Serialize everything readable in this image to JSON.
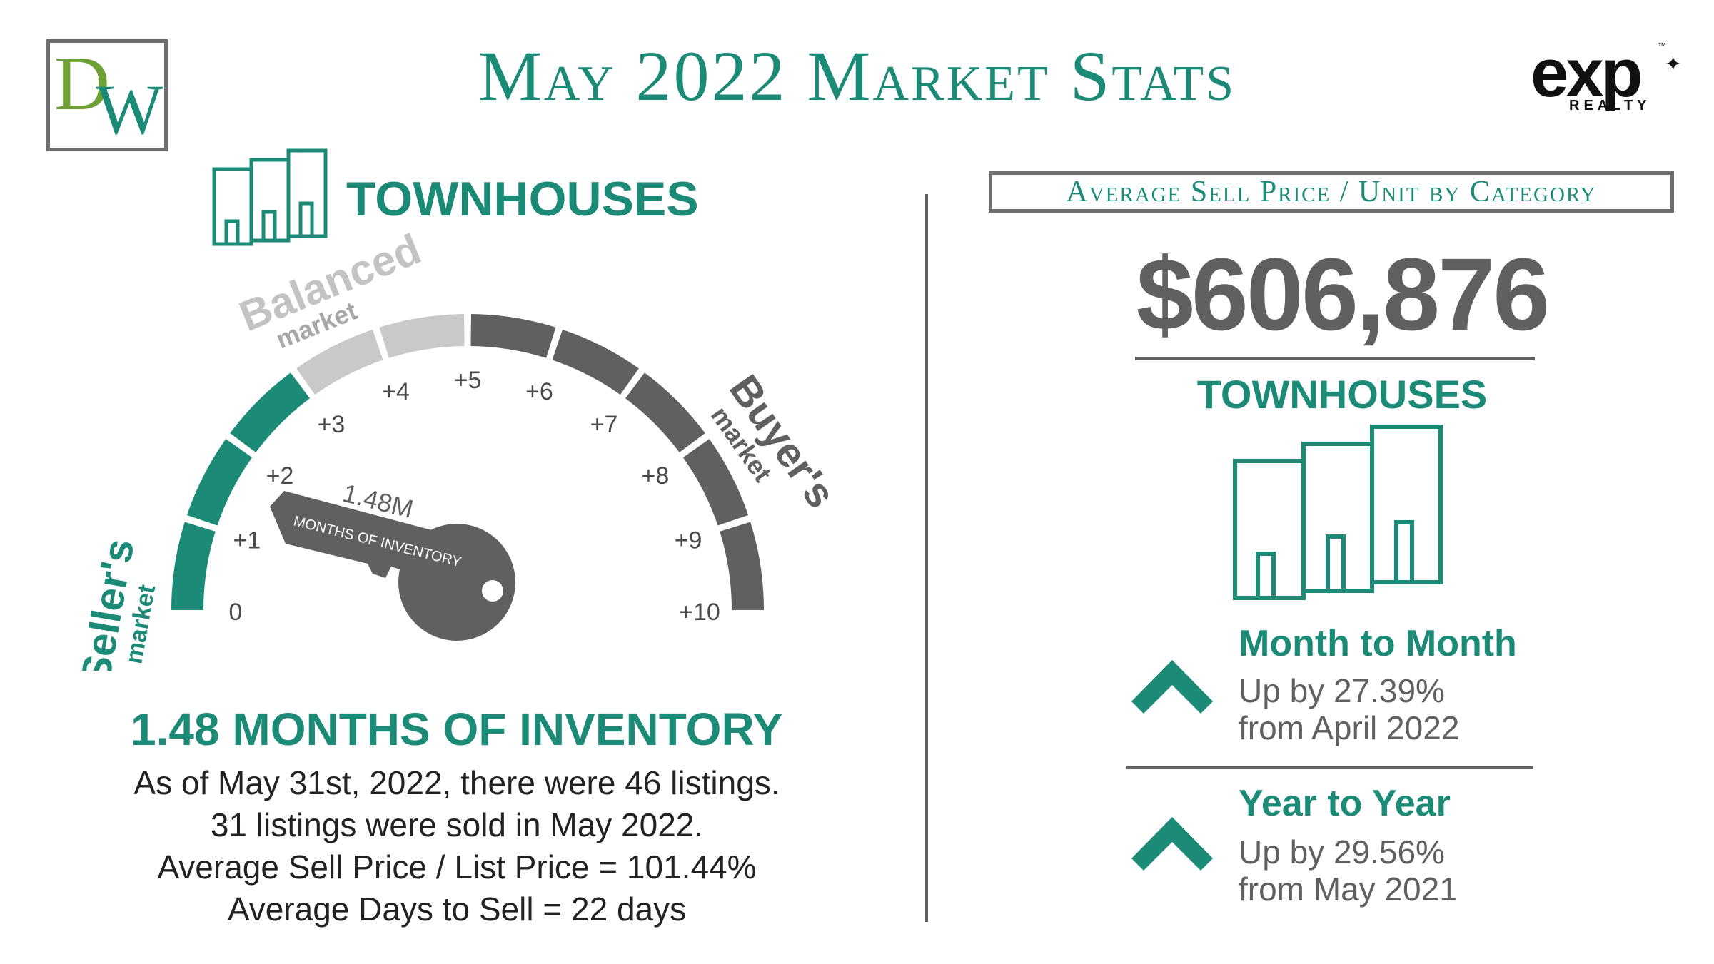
{
  "header": {
    "title": "May 2022 Market Stats",
    "left_logo": {
      "letter1": "D",
      "letter2": "W"
    },
    "right_logo": {
      "text": "exp",
      "tm": "™",
      "sub": "REALTY",
      "icon": "maple-leaf-icon"
    }
  },
  "left": {
    "category_title": "TOWNHOUSES",
    "gauge": {
      "ticks": [
        "0",
        "+1",
        "+2",
        "+3",
        "+4",
        "+5",
        "+6",
        "+7",
        "+8",
        "+9",
        "+10"
      ],
      "sellers_label": "Seller's",
      "sellers_sub": "market",
      "balanced_label": "Balanced",
      "balanced_sub": "market",
      "buyers_label": "Buyer's",
      "buyers_sub": "market",
      "key_value": "1.48M",
      "key_label": "MONTHS OF INVENTORY",
      "value": 1.48,
      "colors": {
        "seller": "#1b8a77",
        "balanced": "#c9c9c9",
        "buyer": "#5f6062"
      }
    },
    "inventory_heading": "1.48 MONTHS OF INVENTORY",
    "details": [
      "As of May 31st, 2022, there were 46 listings.",
      "31 listings were sold in May 2022.",
      "Average Sell Price / List Price = 101.44%",
      "Average Days to Sell = 22 days"
    ]
  },
  "right": {
    "box_title": "Average Sell Price / Unit by Category",
    "price": "$606,876",
    "category": "TOWNHOUSES",
    "month_to_month": {
      "title": "Month to Month",
      "line1": "Up by 27.39%",
      "line2": "from April 2022",
      "icon": "chevron-up-icon"
    },
    "year_to_year": {
      "title": "Year to Year",
      "line1": "Up by 29.56%",
      "line2": "from May 2021",
      "icon": "chevron-up-icon"
    }
  }
}
